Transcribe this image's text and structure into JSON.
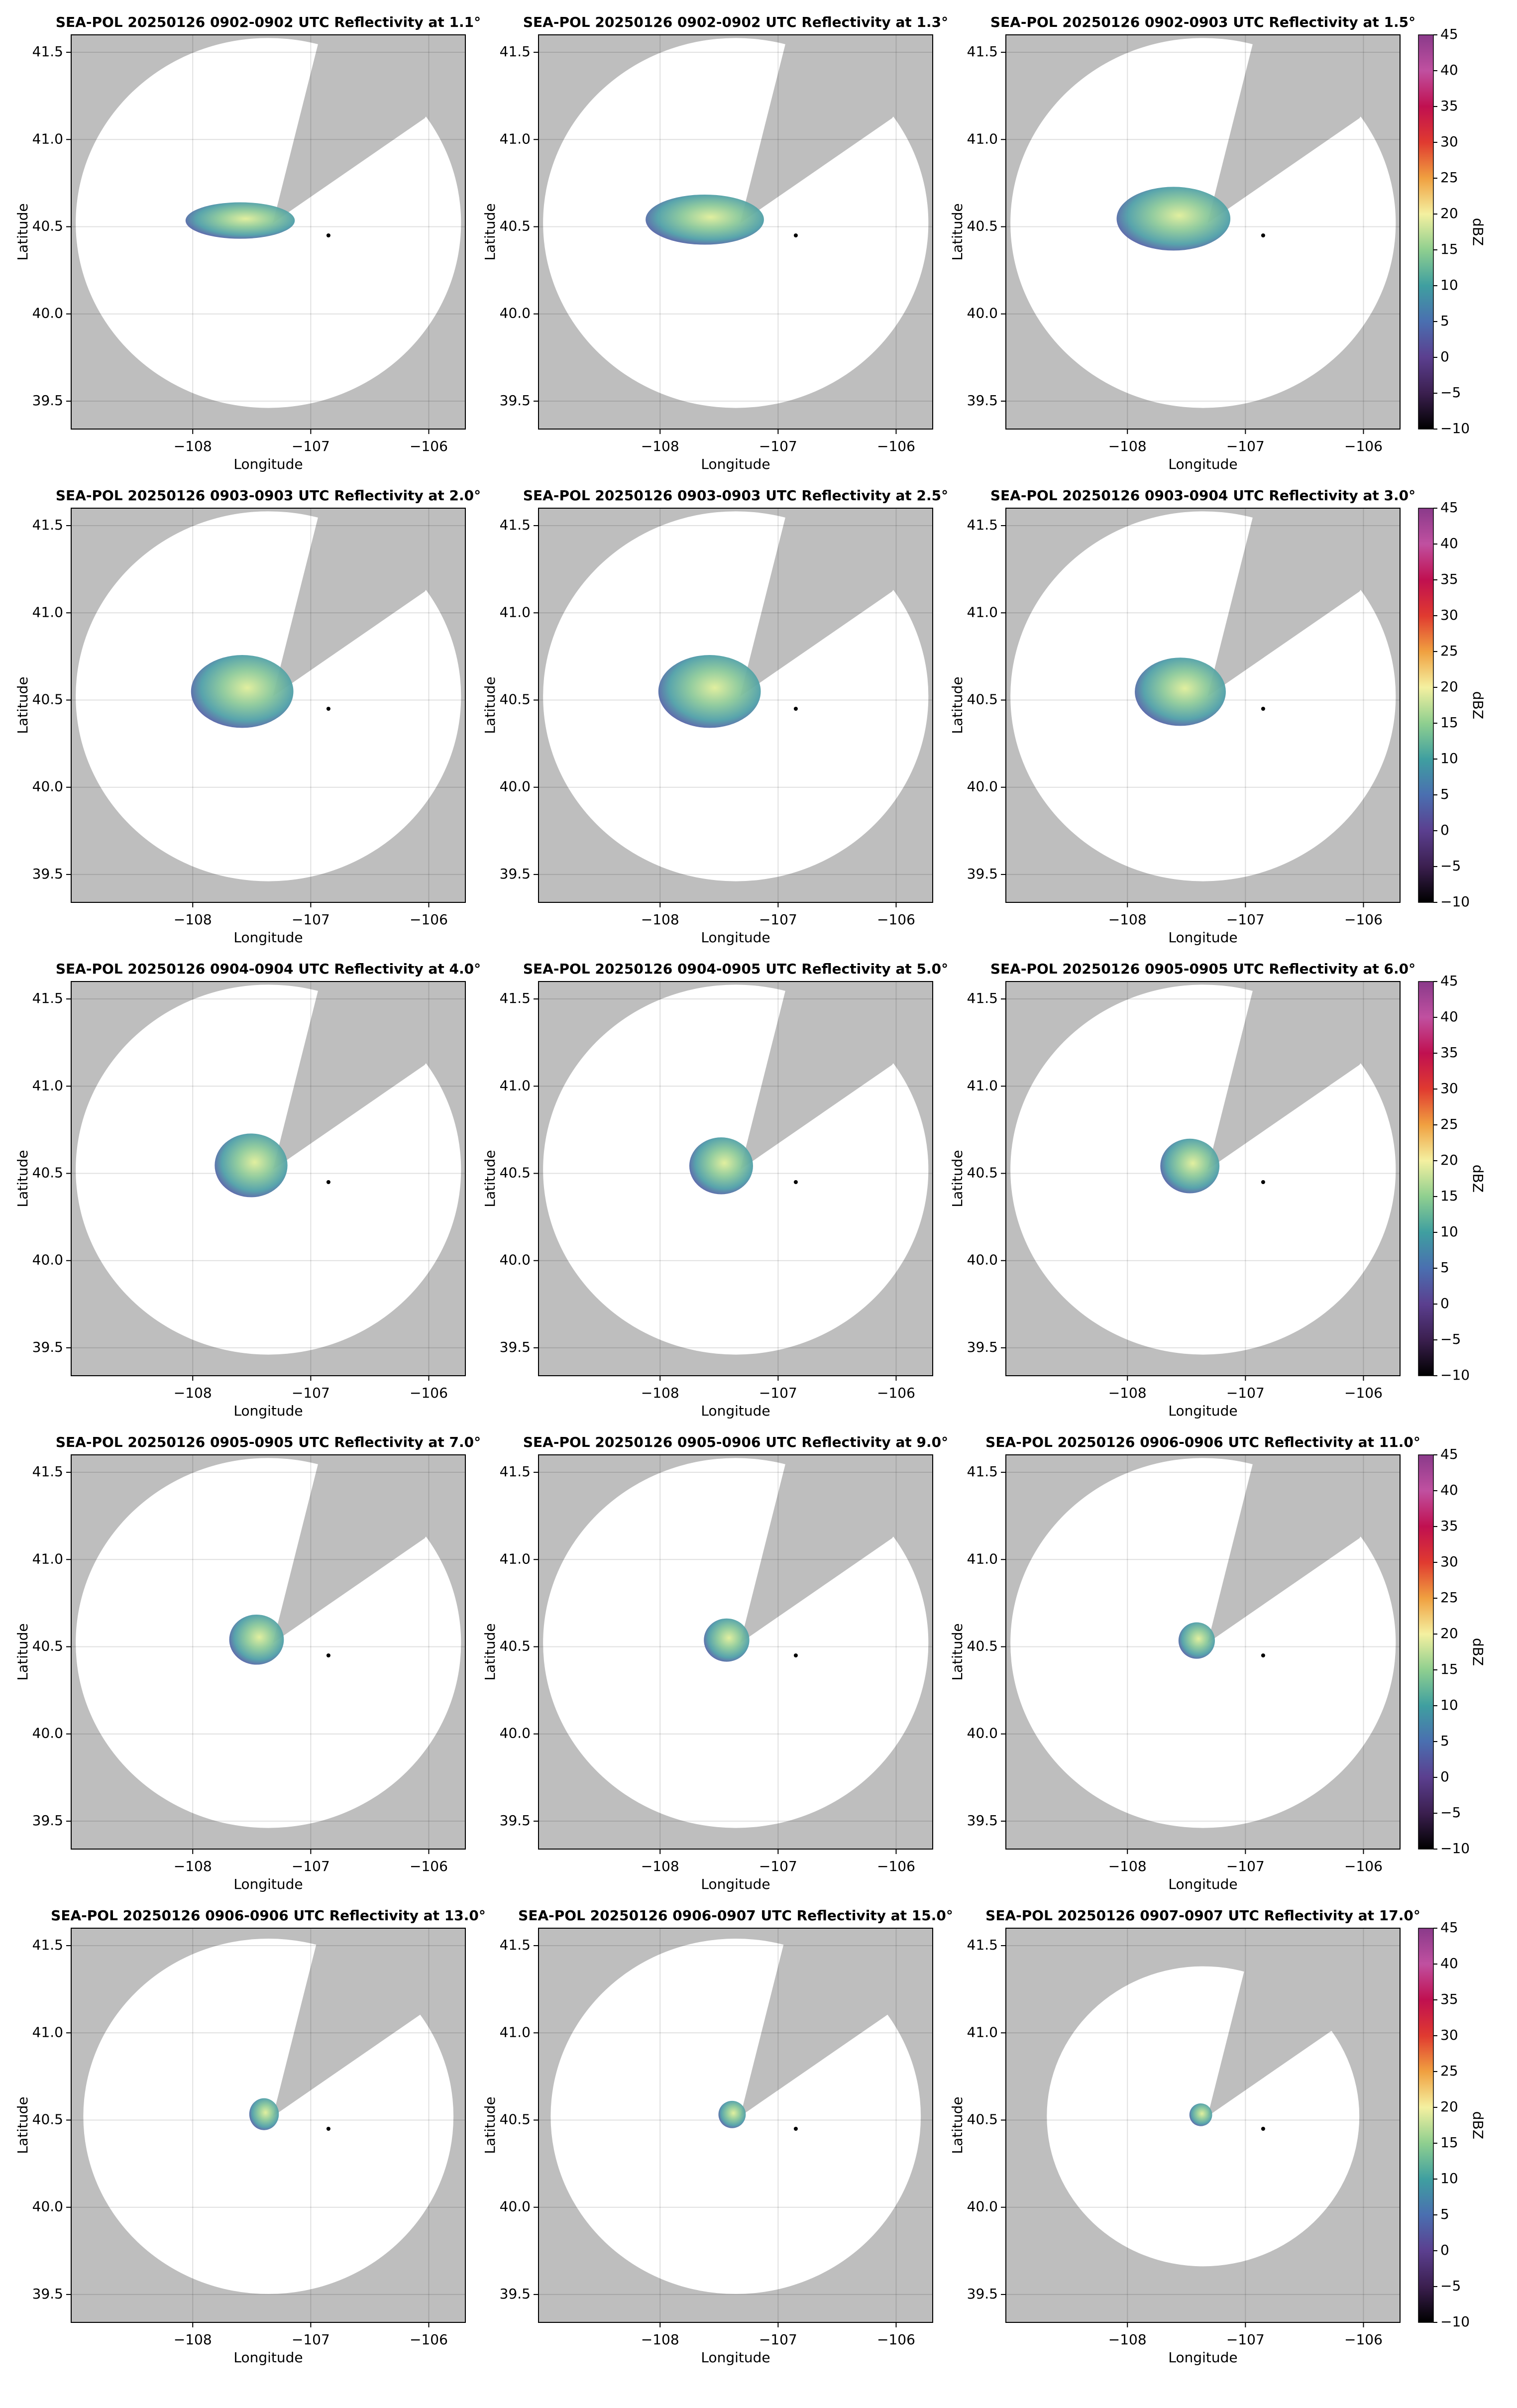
{
  "chart_data": [
    {
      "type": "radar",
      "title": "SEA-POL 20250126 0902-0902 UTC Reflectivity at 1.1°",
      "xlabel": "Longitude",
      "ylabel": "Latitude",
      "xlim": [
        -109.03,
        -105.69
      ],
      "ylim": [
        39.34,
        41.6
      ],
      "xticks": [
        {
          "value": -108,
          "label": "−108"
        },
        {
          "value": -107,
          "label": "−107"
        },
        {
          "value": -106,
          "label": "−106"
        }
      ],
      "yticks": [
        39.5,
        {
          "value": 40,
          "label": "40.0"
        },
        40.5,
        {
          "value": 41,
          "label": "41.0"
        },
        41.5
      ],
      "grid": true,
      "marker_lon": -106.85,
      "marker_lat": 40.45
    },
    {
      "type": "radar",
      "title": "SEA-POL 20250126 0902-0902 UTC Reflectivity at 1.3°",
      "xlabel": "Longitude",
      "ylabel": "Latitude",
      "xlim": [
        -109.03,
        -105.69
      ],
      "ylim": [
        39.34,
        41.6
      ],
      "xticks": [
        {
          "value": -108,
          "label": "−108"
        },
        {
          "value": -107,
          "label": "−107"
        },
        {
          "value": -106,
          "label": "−106"
        }
      ],
      "yticks": [
        39.5,
        {
          "value": 40,
          "label": "40.0"
        },
        40.5,
        {
          "value": 41,
          "label": "41.0"
        },
        41.5
      ],
      "grid": true,
      "marker_lon": -106.85,
      "marker_lat": 40.45
    },
    {
      "type": "radar",
      "title": "SEA-POL 20250126 0902-0903 UTC Reflectivity at 1.5°",
      "xlabel": "Longitude",
      "ylabel": "Latitude",
      "xlim": [
        -109.03,
        -105.69
      ],
      "ylim": [
        39.34,
        41.6
      ],
      "xticks": [
        {
          "value": -108,
          "label": "−108"
        },
        {
          "value": -107,
          "label": "−107"
        },
        {
          "value": -106,
          "label": "−106"
        }
      ],
      "yticks": [
        39.5,
        {
          "value": 40,
          "label": "40.0"
        },
        40.5,
        {
          "value": 41,
          "label": "41.0"
        },
        41.5
      ],
      "grid": true,
      "marker_lon": -106.85,
      "marker_lat": 40.45,
      "colorbar": {
        "label": "dBZ",
        "lim": [
          -10,
          45
        ],
        "ticks": [
          {
            "value": -10,
            "label": "−10"
          },
          {
            "value": -5,
            "label": "−5"
          },
          0,
          5,
          10,
          15,
          20,
          25,
          30,
          35,
          40,
          45
        ],
        "colors": [
          "#000000",
          "#3b1f4f",
          "#5b3f8f",
          "#4a6fb0",
          "#3f9fa0",
          "#8fcf8f",
          "#f4f0a0",
          "#f0a040",
          "#e03a30",
          "#c01050",
          "#c050a0",
          "#8a3a8a"
        ]
      }
    },
    {
      "type": "radar",
      "title": "SEA-POL 20250126 0903-0903 UTC Reflectivity at 2.0°",
      "xlabel": "Longitude",
      "ylabel": "Latitude",
      "xlim": [
        -109.03,
        -105.69
      ],
      "ylim": [
        39.34,
        41.6
      ],
      "xticks": [
        {
          "value": -108,
          "label": "−108"
        },
        {
          "value": -107,
          "label": "−107"
        },
        {
          "value": -106,
          "label": "−106"
        }
      ],
      "yticks": [
        39.5,
        {
          "value": 40,
          "label": "40.0"
        },
        40.5,
        {
          "value": 41,
          "label": "41.0"
        },
        41.5
      ],
      "grid": true,
      "marker_lon": -106.85,
      "marker_lat": 40.45
    },
    {
      "type": "radar",
      "title": "SEA-POL 20250126 0903-0903 UTC Reflectivity at 2.5°",
      "xlabel": "Longitude",
      "ylabel": "Latitude",
      "xlim": [
        -109.03,
        -105.69
      ],
      "ylim": [
        39.34,
        41.6
      ],
      "xticks": [
        {
          "value": -108,
          "label": "−108"
        },
        {
          "value": -107,
          "label": "−107"
        },
        {
          "value": -106,
          "label": "−106"
        }
      ],
      "yticks": [
        39.5,
        {
          "value": 40,
          "label": "40.0"
        },
        40.5,
        {
          "value": 41,
          "label": "41.0"
        },
        41.5
      ],
      "grid": true,
      "marker_lon": -106.85,
      "marker_lat": 40.45
    },
    {
      "type": "radar",
      "title": "SEA-POL 20250126 0903-0904 UTC Reflectivity at 3.0°",
      "xlabel": "Longitude",
      "ylabel": "Latitude",
      "xlim": [
        -109.03,
        -105.69
      ],
      "ylim": [
        39.34,
        41.6
      ],
      "xticks": [
        {
          "value": -108,
          "label": "−108"
        },
        {
          "value": -107,
          "label": "−107"
        },
        {
          "value": -106,
          "label": "−106"
        }
      ],
      "yticks": [
        39.5,
        {
          "value": 40,
          "label": "40.0"
        },
        40.5,
        {
          "value": 41,
          "label": "41.0"
        },
        41.5
      ],
      "grid": true,
      "marker_lon": -106.85,
      "marker_lat": 40.45,
      "colorbar": {
        "label": "dBZ",
        "lim": [
          -10,
          45
        ],
        "ticks": [
          {
            "value": -10,
            "label": "−10"
          },
          {
            "value": -5,
            "label": "−5"
          },
          0,
          5,
          10,
          15,
          20,
          25,
          30,
          35,
          40,
          45
        ],
        "colors": [
          "#000000",
          "#3b1f4f",
          "#5b3f8f",
          "#4a6fb0",
          "#3f9fa0",
          "#8fcf8f",
          "#f4f0a0",
          "#f0a040",
          "#e03a30",
          "#c01050",
          "#c050a0",
          "#8a3a8a"
        ]
      }
    },
    {
      "type": "radar",
      "title": "SEA-POL 20250126 0904-0904 UTC Reflectivity at 4.0°",
      "xlabel": "Longitude",
      "ylabel": "Latitude",
      "xlim": [
        -109.03,
        -105.69
      ],
      "ylim": [
        39.34,
        41.6
      ],
      "xticks": [
        {
          "value": -108,
          "label": "−108"
        },
        {
          "value": -107,
          "label": "−107"
        },
        {
          "value": -106,
          "label": "−106"
        }
      ],
      "yticks": [
        39.5,
        {
          "value": 40,
          "label": "40.0"
        },
        40.5,
        {
          "value": 41,
          "label": "41.0"
        },
        41.5
      ],
      "grid": true,
      "marker_lon": -106.85,
      "marker_lat": 40.45
    },
    {
      "type": "radar",
      "title": "SEA-POL 20250126 0904-0905 UTC Reflectivity at 5.0°",
      "xlabel": "Longitude",
      "ylabel": "Latitude",
      "xlim": [
        -109.03,
        -105.69
      ],
      "ylim": [
        39.34,
        41.6
      ],
      "xticks": [
        {
          "value": -108,
          "label": "−108"
        },
        {
          "value": -107,
          "label": "−107"
        },
        {
          "value": -106,
          "label": "−106"
        }
      ],
      "yticks": [
        39.5,
        {
          "value": 40,
          "label": "40.0"
        },
        40.5,
        {
          "value": 41,
          "label": "41.0"
        },
        41.5
      ],
      "grid": true,
      "marker_lon": -106.85,
      "marker_lat": 40.45
    },
    {
      "type": "radar",
      "title": "SEA-POL 20250126 0905-0905 UTC Reflectivity at 6.0°",
      "xlabel": "Longitude",
      "ylabel": "Latitude",
      "xlim": [
        -109.03,
        -105.69
      ],
      "ylim": [
        39.34,
        41.6
      ],
      "xticks": [
        {
          "value": -108,
          "label": "−108"
        },
        {
          "value": -107,
          "label": "−107"
        },
        {
          "value": -106,
          "label": "−106"
        }
      ],
      "yticks": [
        39.5,
        {
          "value": 40,
          "label": "40.0"
        },
        40.5,
        {
          "value": 41,
          "label": "41.0"
        },
        41.5
      ],
      "grid": true,
      "marker_lon": -106.85,
      "marker_lat": 40.45,
      "colorbar": {
        "label": "dBZ",
        "lim": [
          -10,
          45
        ],
        "ticks": [
          {
            "value": -10,
            "label": "−10"
          },
          {
            "value": -5,
            "label": "−5"
          },
          0,
          5,
          10,
          15,
          20,
          25,
          30,
          35,
          40,
          45
        ],
        "colors": [
          "#000000",
          "#3b1f4f",
          "#5b3f8f",
          "#4a6fb0",
          "#3f9fa0",
          "#8fcf8f",
          "#f4f0a0",
          "#f0a040",
          "#e03a30",
          "#c01050",
          "#c050a0",
          "#8a3a8a"
        ]
      }
    },
    {
      "type": "radar",
      "title": "SEA-POL 20250126 0905-0905 UTC Reflectivity at 7.0°",
      "xlabel": "Longitude",
      "ylabel": "Latitude",
      "xlim": [
        -109.03,
        -105.69
      ],
      "ylim": [
        39.34,
        41.6
      ],
      "xticks": [
        {
          "value": -108,
          "label": "−108"
        },
        {
          "value": -107,
          "label": "−107"
        },
        {
          "value": -106,
          "label": "−106"
        }
      ],
      "yticks": [
        39.5,
        {
          "value": 40,
          "label": "40.0"
        },
        40.5,
        {
          "value": 41,
          "label": "41.0"
        },
        41.5
      ],
      "grid": true,
      "marker_lon": -106.85,
      "marker_lat": 40.45
    },
    {
      "type": "radar",
      "title": "SEA-POL 20250126 0905-0906 UTC Reflectivity at 9.0°",
      "xlabel": "Longitude",
      "ylabel": "Latitude",
      "xlim": [
        -109.03,
        -105.69
      ],
      "ylim": [
        39.34,
        41.6
      ],
      "xticks": [
        {
          "value": -108,
          "label": "−108"
        },
        {
          "value": -107,
          "label": "−107"
        },
        {
          "value": -106,
          "label": "−106"
        }
      ],
      "yticks": [
        39.5,
        {
          "value": 40,
          "label": "40.0"
        },
        40.5,
        {
          "value": 41,
          "label": "41.0"
        },
        41.5
      ],
      "grid": true,
      "marker_lon": -106.85,
      "marker_lat": 40.45
    },
    {
      "type": "radar",
      "title": "SEA-POL 20250126 0906-0906 UTC Reflectivity at 11.0°",
      "xlabel": "Longitude",
      "ylabel": "Latitude",
      "xlim": [
        -109.03,
        -105.69
      ],
      "ylim": [
        39.34,
        41.6
      ],
      "xticks": [
        {
          "value": -108,
          "label": "−108"
        },
        {
          "value": -107,
          "label": "−107"
        },
        {
          "value": -106,
          "label": "−106"
        }
      ],
      "yticks": [
        39.5,
        {
          "value": 40,
          "label": "40.0"
        },
        40.5,
        {
          "value": 41,
          "label": "41.0"
        },
        41.5
      ],
      "grid": true,
      "marker_lon": -106.85,
      "marker_lat": 40.45,
      "colorbar": {
        "label": "dBZ",
        "lim": [
          -10,
          45
        ],
        "ticks": [
          {
            "value": -10,
            "label": "−10"
          },
          {
            "value": -5,
            "label": "−5"
          },
          0,
          5,
          10,
          15,
          20,
          25,
          30,
          35,
          40,
          45
        ],
        "colors": [
          "#000000",
          "#3b1f4f",
          "#5b3f8f",
          "#4a6fb0",
          "#3f9fa0",
          "#8fcf8f",
          "#f4f0a0",
          "#f0a040",
          "#e03a30",
          "#c01050",
          "#c050a0",
          "#8a3a8a"
        ]
      }
    },
    {
      "type": "radar",
      "title": "SEA-POL 20250126 0906-0906 UTC Reflectivity at 13.0°",
      "xlabel": "Longitude",
      "ylabel": "Latitude",
      "xlim": [
        -109.03,
        -105.69
      ],
      "ylim": [
        39.34,
        41.6
      ],
      "xticks": [
        {
          "value": -108,
          "label": "−108"
        },
        {
          "value": -107,
          "label": "−107"
        },
        {
          "value": -106,
          "label": "−106"
        }
      ],
      "yticks": [
        39.5,
        {
          "value": 40,
          "label": "40.0"
        },
        40.5,
        {
          "value": 41,
          "label": "41.0"
        },
        41.5
      ],
      "grid": true,
      "marker_lon": -106.85,
      "marker_lat": 40.45
    },
    {
      "type": "radar",
      "title": "SEA-POL 20250126 0906-0907 UTC Reflectivity at 15.0°",
      "xlabel": "Longitude",
      "ylabel": "Latitude",
      "xlim": [
        -109.03,
        -105.69
      ],
      "ylim": [
        39.34,
        41.6
      ],
      "xticks": [
        {
          "value": -108,
          "label": "−108"
        },
        {
          "value": -107,
          "label": "−107"
        },
        {
          "value": -106,
          "label": "−106"
        }
      ],
      "yticks": [
        39.5,
        {
          "value": 40,
          "label": "40.0"
        },
        40.5,
        {
          "value": 41,
          "label": "41.0"
        },
        41.5
      ],
      "grid": true,
      "marker_lon": -106.85,
      "marker_lat": 40.45
    },
    {
      "type": "radar",
      "title": "SEA-POL 20250126 0907-0907 UTC Reflectivity at 17.0°",
      "xlabel": "Longitude",
      "ylabel": "Latitude",
      "xlim": [
        -109.03,
        -105.69
      ],
      "ylim": [
        39.34,
        41.6
      ],
      "xticks": [
        {
          "value": -108,
          "label": "−108"
        },
        {
          "value": -107,
          "label": "−107"
        },
        {
          "value": -106,
          "label": "−106"
        }
      ],
      "yticks": [
        39.5,
        {
          "value": 40,
          "label": "40.0"
        },
        40.5,
        {
          "value": 41,
          "label": "41.0"
        },
        41.5
      ],
      "grid": true,
      "marker_lon": -106.85,
      "marker_lat": 40.45,
      "colorbar": {
        "label": "dBZ",
        "lim": [
          -10,
          45
        ],
        "ticks": [
          {
            "value": -10,
            "label": "−10"
          },
          {
            "value": -5,
            "label": "−5"
          },
          0,
          5,
          10,
          15,
          20,
          25,
          30,
          35,
          40,
          45
        ],
        "colors": [
          "#000000",
          "#3b1f4f",
          "#5b3f8f",
          "#4a6fb0",
          "#3f9fa0",
          "#8fcf8f",
          "#f4f0a0",
          "#f0a040",
          "#e03a30",
          "#c01050",
          "#c050a0",
          "#8a3a8a"
        ]
      }
    }
  ]
}
